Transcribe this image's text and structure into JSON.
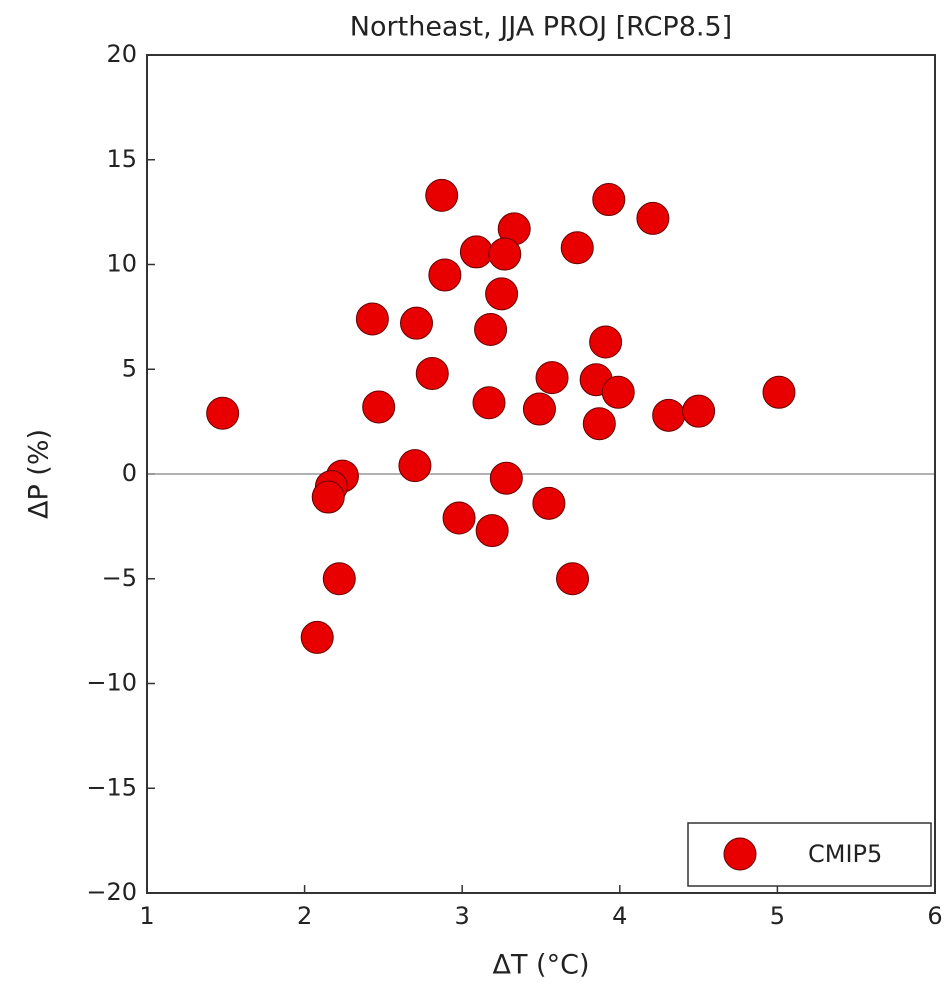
{
  "chart_data": {
    "type": "scatter",
    "title": "Northeast, JJA PROJ [RCP8.5]",
    "x_label": "ΔT (°C)",
    "y_label": "ΔP (%)",
    "xlim": [
      1,
      6
    ],
    "xticks": [
      1,
      2,
      3,
      4,
      5,
      6
    ],
    "ylim": [
      -20,
      20
    ],
    "yticks": [
      {
        "value": -20,
        "label": "−20"
      },
      {
        "value": -15,
        "label": "−15"
      },
      {
        "value": -10,
        "label": "−10"
      },
      {
        "value": -5,
        "label": "−5"
      },
      0,
      5,
      10,
      15,
      20
    ],
    "hline": 0,
    "legend": "lower right",
    "series": [
      {
        "name": "CMIP5",
        "color": "#e80000",
        "x": [
          1.48,
          2.87,
          3.93,
          4.21,
          3.33,
          3.09,
          3.27,
          3.73,
          2.89,
          3.25,
          2.43,
          2.71,
          3.18,
          3.91,
          2.81,
          3.57,
          3.85,
          3.99,
          5.01,
          3.17,
          2.47,
          3.49,
          4.31,
          4.5,
          3.87,
          2.7,
          2.24,
          3.28,
          2.17,
          2.15,
          3.55,
          2.98,
          3.19,
          2.22,
          3.7,
          2.08
        ],
        "values": [
          2.9,
          13.3,
          13.1,
          12.2,
          11.7,
          10.6,
          10.5,
          10.8,
          9.5,
          8.6,
          7.4,
          7.2,
          6.9,
          6.3,
          4.8,
          4.6,
          4.5,
          3.9,
          3.9,
          3.4,
          3.2,
          3.1,
          2.8,
          3.0,
          2.4,
          0.4,
          -0.1,
          -0.2,
          -0.6,
          -1.1,
          -1.4,
          -2.1,
          -2.7,
          -5.0,
          -5.0,
          -7.8
        ]
      }
    ]
  }
}
